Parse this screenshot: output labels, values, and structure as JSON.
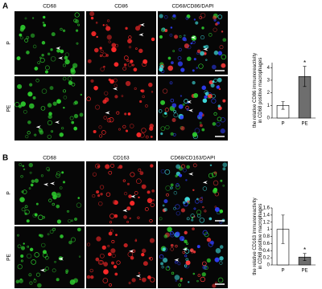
{
  "panels": [
    {
      "label": "A",
      "columns": [
        "CD68",
        "CD86",
        "CD68/CD86/DAPI"
      ],
      "rows": [
        "P",
        "PE"
      ]
    },
    {
      "label": "B",
      "columns": [
        "CD68",
        "CD163",
        "CD68/CD163/DAPI"
      ],
      "rows": [
        "P",
        "PE"
      ]
    }
  ],
  "chart_data": [
    {
      "type": "bar",
      "y_label": "the relative CD86 immunoreactivity in CD68 positive macrophages",
      "categories": [
        "P",
        "PE"
      ],
      "values": [
        1.0,
        3.3
      ],
      "errors": [
        0.3,
        0.8
      ],
      "colors": [
        "#ffffff",
        "#6e6e6e"
      ],
      "annotations": [
        null,
        "*"
      ],
      "ylim": [
        0,
        4.4
      ],
      "yticks": [
        0,
        1,
        2,
        3,
        4
      ]
    },
    {
      "type": "bar",
      "y_label": "the relative CD163 immunoreactivity in CD68 positive macrophages",
      "categories": [
        "P",
        "PE"
      ],
      "values": [
        1.0,
        0.22
      ],
      "errors": [
        0.4,
        0.1
      ],
      "colors": [
        "#ffffff",
        "#6e6e6e"
      ],
      "annotations": [
        null,
        "*"
      ],
      "ylim": [
        0,
        1.6
      ],
      "yticks": [
        0,
        0.2,
        0.4,
        0.6,
        0.8,
        1,
        1.2,
        1.4,
        1.6
      ]
    }
  ]
}
